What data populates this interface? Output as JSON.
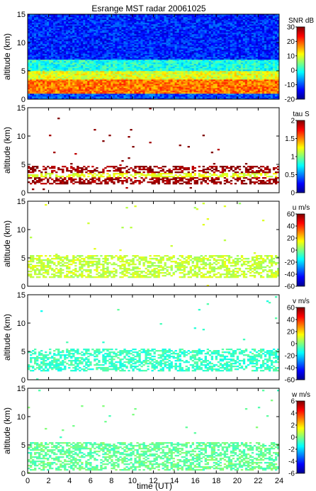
{
  "title": "Esrange MST radar 20061025",
  "x_axis": {
    "label": "time (UT)",
    "range": [
      0,
      24
    ],
    "ticks": [
      0,
      2,
      4,
      6,
      8,
      10,
      12,
      14,
      16,
      18,
      20,
      22,
      24
    ]
  },
  "chart_data": [
    {
      "type": "heatmap",
      "panel": "SNR",
      "ylabel": "altitude (km)",
      "ylim": [
        0,
        15
      ],
      "yticks": [
        0,
        5,
        10,
        15
      ],
      "xlim": [
        0,
        24
      ],
      "colorbar": {
        "label": "SNR dB",
        "range": [
          -20,
          30
        ],
        "ticks": [
          -20,
          -10,
          0,
          10,
          20,
          30
        ]
      },
      "colormap": "jet",
      "coverage": "full",
      "layers": [
        {
          "alt_from": 1.2,
          "alt_to": 2.0,
          "value": 28
        },
        {
          "alt_from": 0.9,
          "alt_to": 3.5,
          "value": 18
        },
        {
          "alt_from": 3.5,
          "alt_to": 5.0,
          "value": 10
        },
        {
          "alt_from": 5.0,
          "alt_to": 7.0,
          "value": 0
        },
        {
          "alt_from": 7.0,
          "alt_to": 15.0,
          "value": -12
        }
      ]
    },
    {
      "type": "heatmap",
      "panel": "tau",
      "ylabel": "altitude (km)",
      "ylim": [
        0,
        15
      ],
      "yticks": [
        0,
        5,
        10,
        15
      ],
      "xlim": [
        0,
        24
      ],
      "colorbar": {
        "label": "tau S",
        "range": [
          0,
          2
        ],
        "ticks": [
          0,
          0.5,
          1,
          1.5,
          2
        ]
      },
      "colormap": "jet",
      "coverage": "sparse",
      "layers": [
        {
          "alt_from": 1.5,
          "alt_to": 4.8,
          "value": 1.95
        },
        {
          "alt_from": 2.8,
          "alt_to": 3.6,
          "value": 1.2
        }
      ]
    },
    {
      "type": "heatmap",
      "panel": "u",
      "ylabel": "altitude (km)",
      "ylim": [
        0,
        15
      ],
      "yticks": [
        0,
        5,
        10,
        15
      ],
      "xlim": [
        0,
        24
      ],
      "colorbar": {
        "label": "u m/s",
        "range": [
          -60,
          60
        ],
        "ticks": [
          -60,
          -40,
          -20,
          0,
          20,
          40,
          60
        ]
      },
      "colormap": "jet",
      "coverage": "sparse",
      "layers": [
        {
          "alt_from": 1.5,
          "alt_to": 5.5,
          "value": 8
        }
      ]
    },
    {
      "type": "heatmap",
      "panel": "v",
      "ylabel": "altitude (km)",
      "ylim": [
        0,
        15
      ],
      "yticks": [
        0,
        5,
        10,
        15
      ],
      "xlim": [
        0,
        24
      ],
      "colorbar": {
        "label": "v m/s",
        "range": [
          -60,
          60
        ],
        "ticks": [
          -60,
          -40,
          -20,
          0,
          20,
          40,
          60
        ]
      },
      "colormap": "jet",
      "coverage": "sparse",
      "layers": [
        {
          "alt_from": 1.5,
          "alt_to": 5.5,
          "value": -8
        }
      ]
    },
    {
      "type": "heatmap",
      "panel": "w",
      "ylabel": "altitude (km)",
      "ylim": [
        0,
        15
      ],
      "yticks": [
        0,
        5,
        10,
        15
      ],
      "xlim": [
        0,
        24
      ],
      "colorbar": {
        "label": "w m/s",
        "range": [
          -6,
          6
        ],
        "ticks": [
          -6,
          -4,
          -2,
          0,
          2,
          4,
          6
        ]
      },
      "colormap": "jet",
      "coverage": "sparse",
      "layers": [
        {
          "alt_from": 0.5,
          "alt_to": 5.5,
          "value": -0.3
        }
      ]
    }
  ]
}
